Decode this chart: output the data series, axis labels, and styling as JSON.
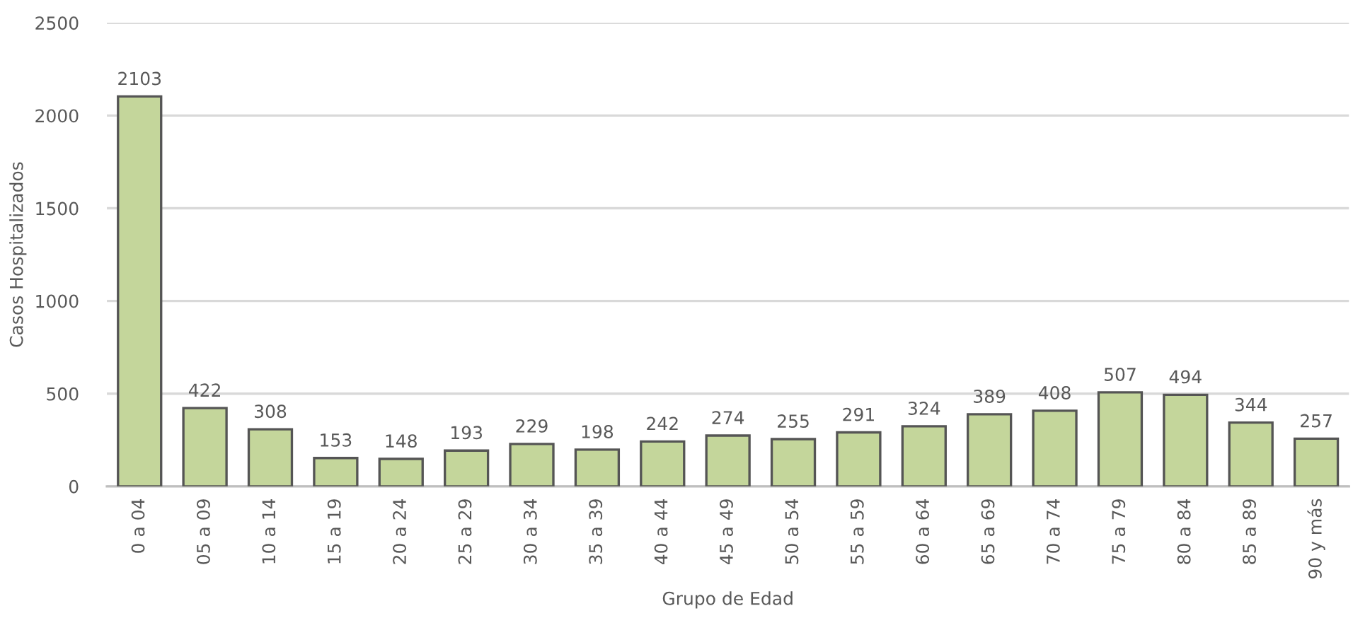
{
  "chart_data": {
    "type": "bar",
    "xlabel": "Grupo de Edad",
    "ylabel": "Casos Hospitalizados",
    "categories": [
      "0 a 04",
      "05 a 09",
      "10 a 14",
      "15 a 19",
      "20 a 24",
      "25 a 29",
      "30 a 34",
      "35 a 39",
      "40 a 44",
      "45 a 49",
      "50 a 54",
      "55 a 59",
      "60 a 64",
      "65 a 69",
      "70 a 74",
      "75 a 79",
      "80 a 84",
      "85 a 89",
      "90 y más"
    ],
    "values": [
      2103,
      422,
      308,
      153,
      148,
      193,
      229,
      198,
      242,
      274,
      255,
      291,
      324,
      389,
      408,
      507,
      494,
      344,
      257
    ],
    "color": "#c4d69b",
    "ylim": [
      0,
      2500
    ],
    "yticks": [
      0,
      500,
      1000,
      1500,
      2000,
      2500
    ],
    "grid": "y",
    "data_labels": true
  }
}
